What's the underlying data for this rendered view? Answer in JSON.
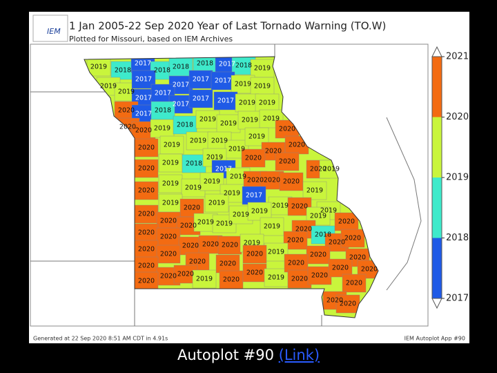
{
  "header": {
    "logo": "IEM",
    "title": "1 Jan 2005-22 Sep 2020 Year of Last Tornado Warning (TO.W)",
    "subtitle": "Plotted for Missouri, based on IEM Archives"
  },
  "map": {
    "county_labels": [
      2019,
      2018,
      2017,
      2018,
      2018,
      2018,
      2017,
      2018,
      2019,
      2019,
      2019,
      2017,
      2017,
      2017,
      2017,
      2019,
      2019,
      2017,
      2017,
      2017,
      2017,
      2017,
      2019,
      2019,
      2020,
      2017,
      2018,
      2020,
      2020,
      2019,
      2018,
      2019,
      2019,
      2019,
      2019,
      2020,
      2019,
      2019,
      2019,
      2020,
      2019,
      2019,
      2020,
      2020,
      2020,
      2019,
      2018,
      2019,
      2017,
      2020,
      2020,
      2020,
      2019,
      2020,
      2019,
      2019,
      2019,
      2019,
      2020,
      2020,
      2020,
      2019,
      2019,
      2017,
      2019,
      2020,
      2019,
      2019,
      2020,
      2019,
      2019,
      2020,
      2020,
      2020,
      2019,
      2019,
      2019,
      2019,
      2019,
      2020,
      2020,
      2020,
      2020,
      2020,
      2020,
      2019,
      2018,
      2020,
      2020,
      2020,
      2019,
      2020,
      2020,
      2020,
      2020,
      2020,
      2020,
      2020,
      2020,
      2020,
      2020,
      2020,
      2019,
      2020,
      2020,
      2019,
      2020,
      2020,
      2020,
      2020,
      2020,
      2020,
      2020,
      2020,
      2020
    ]
  },
  "colorbar": {
    "ticks": [
      2017,
      2018,
      2019,
      2020,
      2021
    ],
    "colors": [
      "#1f5ae6",
      "#3eeacb",
      "#c9f53c",
      "#f36b12"
    ]
  },
  "footer": {
    "left": "Generated at 22 Sep 2020 8:51 AM CDT in 4.91s",
    "right": "IEM Autoplot App #90"
  },
  "caption": {
    "text": "Autoplot #90",
    "link": "(Link)"
  }
}
